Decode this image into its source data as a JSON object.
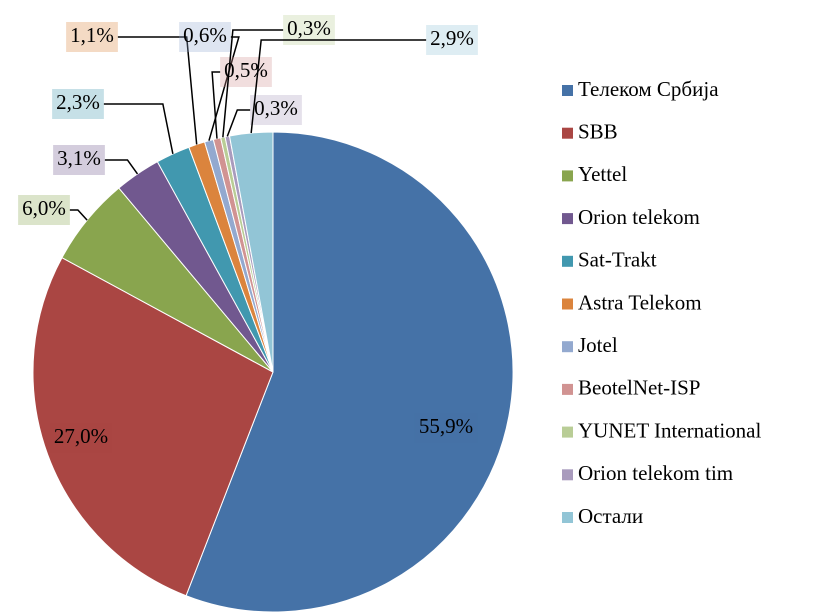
{
  "chart_data": {
    "type": "pie",
    "categories": [
      "Телеком Србија",
      "SBB",
      "Yettel",
      "Orion telekom",
      "Sat-Trakt",
      "Astra Telekom",
      "Jotel",
      "BeotelNet-ISP",
      "YUNET International",
      "Orion telekom tim",
      "Остали"
    ],
    "values": [
      55.9,
      27.0,
      6.0,
      3.1,
      2.3,
      1.1,
      0.6,
      0.5,
      0.3,
      0.3,
      2.9
    ],
    "value_labels": [
      "55,9%",
      "27,0%",
      "6,0%",
      "3,1%",
      "2,3%",
      "1,1%",
      "0,6%",
      "0,5%",
      "0,3%",
      "0,3%",
      "2,9%"
    ],
    "colors": [
      "#4572a7",
      "#aa4643",
      "#89a54e",
      "#71588f",
      "#4198af",
      "#db843d",
      "#93a9cf",
      "#d19392",
      "#b9cd96",
      "#a99bbd",
      "#92c5d6"
    ],
    "legend": "right"
  }
}
